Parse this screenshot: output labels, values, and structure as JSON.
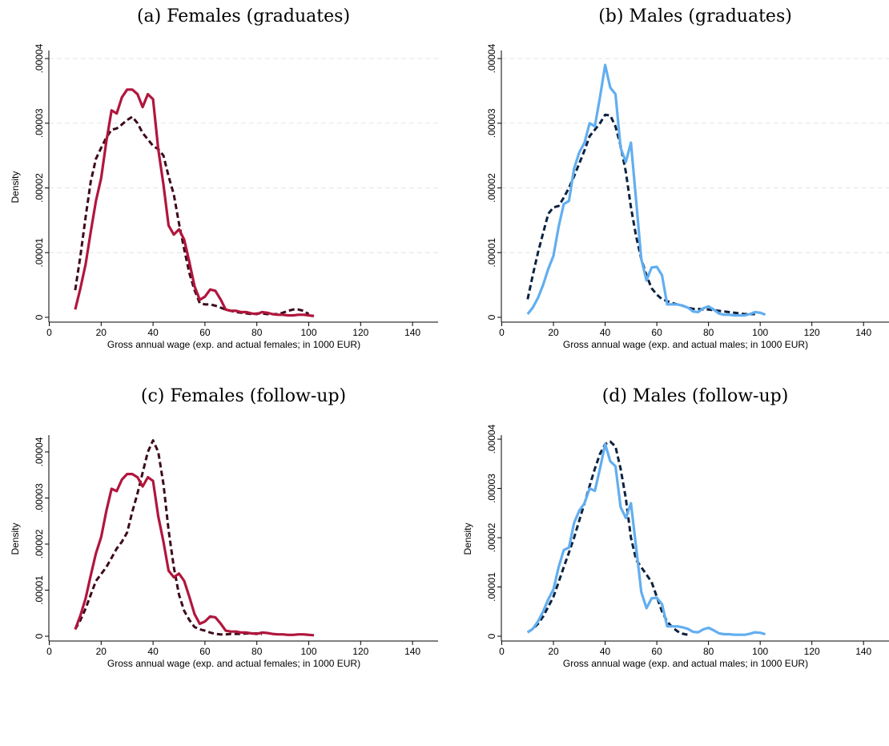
{
  "colors": {
    "female_actual": "#b0163d",
    "female_expected": "#3d0a1a",
    "male_actual": "#62aef0",
    "male_expected": "#0d2240",
    "grid": "#e4e4e4",
    "axis": "#000000"
  },
  "chart_data": [
    {
      "type": "line",
      "title": "(a) Females (graduates)",
      "xlabel": "Gross annual wage (exp. and actual females; in 1000 EUR)",
      "ylabel": "Density",
      "xlim": [
        0,
        150
      ],
      "ylim": [
        0,
        4.1e-05
      ],
      "xticks": [
        "0",
        "20",
        "40",
        "60",
        "80",
        "100",
        "120",
        "140"
      ],
      "yticks": [
        "0",
        ".00001",
        ".00002",
        ".00003",
        ".00004"
      ],
      "ytick_values": [
        0,
        1e-05,
        2e-05,
        3e-05,
        4e-05
      ],
      "grid": true,
      "series": [
        {
          "role": "actual",
          "style": "solid",
          "color": "#b0163d",
          "x": [
            10,
            12,
            14,
            16,
            18,
            20,
            22,
            24,
            26,
            28,
            30,
            32,
            34,
            36,
            38,
            40,
            42,
            44,
            46,
            48,
            50,
            52,
            54,
            56,
            58,
            60,
            62,
            64,
            66,
            68,
            70,
            72,
            74,
            76,
            78,
            80,
            82,
            84,
            86,
            88,
            90,
            92,
            94,
            96,
            98,
            100,
            102
          ],
          "y": [
            1.2e-06,
            4.5e-06,
            8.2e-06,
            1.32e-05,
            1.8e-05,
            2.15e-05,
            2.72e-05,
            3.2e-05,
            3.15e-05,
            3.4e-05,
            3.52e-05,
            3.52e-05,
            3.45e-05,
            3.25e-05,
            3.45e-05,
            3.37e-05,
            2.6e-05,
            2.05e-05,
            1.42e-05,
            1.28e-05,
            1.36e-05,
            1.2e-05,
            8.5e-06,
            4.8e-06,
            2.7e-06,
            3.2e-06,
            4.3e-06,
            4.1e-06,
            2.8e-06,
            1.2e-06,
            1e-06,
            1e-06,
            8e-07,
            8e-07,
            6e-07,
            5e-07,
            8e-07,
            7e-07,
            5e-07,
            4e-07,
            4e-07,
            3e-07,
            3e-07,
            4e-07,
            4e-07,
            3e-07,
            2e-07
          ]
        },
        {
          "role": "expected",
          "style": "dashed",
          "color": "#3d0a1a",
          "x": [
            10,
            12,
            14,
            16,
            18,
            20,
            22,
            24,
            26,
            28,
            30,
            32,
            34,
            36,
            38,
            40,
            42,
            44,
            46,
            48,
            50,
            52,
            54,
            56,
            58,
            60,
            62,
            64,
            66,
            68,
            70,
            72,
            74,
            76,
            78,
            80,
            82,
            84,
            86,
            88,
            90,
            92,
            94,
            96,
            98,
            100
          ],
          "y": [
            4.2e-06,
            9.5e-06,
            1.55e-05,
            2.1e-05,
            2.45e-05,
            2.62e-05,
            2.78e-05,
            2.9e-05,
            2.92e-05,
            2.98e-05,
            3.05e-05,
            3.1e-05,
            3e-05,
            2.85e-05,
            2.75e-05,
            2.65e-05,
            2.6e-05,
            2.5e-05,
            2.18e-05,
            1.9e-05,
            1.45e-05,
            1.05e-05,
            6.8e-06,
            4.2e-06,
            2.2e-06,
            2e-06,
            2e-06,
            1.8e-06,
            1.5e-06,
            1.2e-06,
            1e-06,
            8e-07,
            7e-07,
            6e-07,
            5e-07,
            6e-07,
            6e-07,
            5e-07,
            5e-07,
            5e-07,
            7e-07,
            1e-06,
            1.2e-06,
            1.2e-06,
            1e-06,
            5e-07
          ]
        }
      ]
    },
    {
      "type": "line",
      "title": "(b) Males (graduates)",
      "xlabel": "Gross annual wage (exp. and actual males; in 1000 EUR)",
      "ylabel": "",
      "xlim": [
        0,
        150
      ],
      "ylim": [
        0,
        4.1e-05
      ],
      "xticks": [
        "0",
        "20",
        "40",
        "60",
        "80",
        "100",
        "120",
        "140"
      ],
      "yticks": [
        "0",
        ".00001",
        ".00002",
        ".00003",
        ".00004"
      ],
      "ytick_values": [
        0,
        1e-05,
        2e-05,
        3e-05,
        4e-05
      ],
      "grid": true,
      "series": [
        {
          "role": "actual",
          "style": "solid",
          "color": "#62aef0",
          "x": [
            10,
            12,
            14,
            16,
            18,
            20,
            22,
            24,
            26,
            28,
            30,
            32,
            34,
            36,
            38,
            40,
            42,
            44,
            46,
            48,
            50,
            52,
            54,
            56,
            58,
            60,
            62,
            64,
            66,
            68,
            70,
            72,
            74,
            76,
            78,
            80,
            82,
            84,
            86,
            88,
            90,
            92,
            94,
            96,
            98,
            100,
            102
          ],
          "y": [
            5e-07,
            1.5e-06,
            3e-06,
            5e-06,
            7.5e-06,
            9.5e-06,
            1.4e-05,
            1.75e-05,
            1.8e-05,
            2.3e-05,
            2.55e-05,
            2.7e-05,
            3e-05,
            2.95e-05,
            3.4e-05,
            3.9e-05,
            3.55e-05,
            3.45e-05,
            2.62e-05,
            2.4e-05,
            2.7e-05,
            1.8e-05,
            9e-06,
            5.7e-06,
            7.7e-06,
            7.8e-06,
            6.5e-06,
            2e-06,
            2e-06,
            2e-06,
            1.8e-06,
            1.5e-06,
            9e-07,
            8e-07,
            1.4e-06,
            1.7e-06,
            1.2e-06,
            6e-07,
            4e-07,
            4e-07,
            3e-07,
            3e-07,
            3e-07,
            5e-07,
            8e-07,
            7e-07,
            4e-07
          ]
        },
        {
          "role": "expected",
          "style": "dashed",
          "color": "#0d2240",
          "x": [
            10,
            12,
            14,
            16,
            18,
            20,
            22,
            24,
            26,
            28,
            30,
            32,
            34,
            36,
            38,
            40,
            42,
            44,
            46,
            48,
            50,
            52,
            54,
            56,
            58,
            60,
            62,
            64,
            66,
            68,
            70,
            72,
            74,
            76,
            78,
            80,
            82,
            84,
            86,
            88,
            90,
            92,
            94,
            96,
            98
          ],
          "y": [
            2.8e-06,
            6.5e-06,
            1e-05,
            1.3e-05,
            1.6e-05,
            1.7e-05,
            1.72e-05,
            1.85e-05,
            2e-05,
            2.18e-05,
            2.38e-05,
            2.58e-05,
            2.8e-05,
            2.9e-05,
            3e-05,
            3.13e-05,
            3.12e-05,
            2.95e-05,
            2.65e-05,
            2.25e-05,
            1.7e-05,
            1.25e-05,
            9e-06,
            6.5e-06,
            4.5e-06,
            3.5e-06,
            2.8e-06,
            2.5e-06,
            2.2e-06,
            2e-06,
            1.8e-06,
            1.5e-06,
            1.3e-06,
            1.3e-06,
            1.2e-06,
            1.2e-06,
            1.1e-06,
            1e-06,
            9e-07,
            8e-07,
            7e-07,
            6e-07,
            5e-07,
            5e-07,
            5e-07
          ]
        }
      ]
    },
    {
      "type": "line",
      "title": "(c) Females (follow-up)",
      "xlabel": "Gross annual wage (exp. and actual females; in 1000 EUR)",
      "ylabel": "Density",
      "xlim": [
        0,
        150
      ],
      "ylim": [
        0,
        4.33e-05
      ],
      "xticks": [
        "0",
        "20",
        "40",
        "60",
        "80",
        "100",
        "120",
        "140"
      ],
      "yticks": [
        "0",
        ".00001",
        ".00002",
        ".00003",
        ".00004"
      ],
      "ytick_values": [
        0,
        1e-05,
        2e-05,
        3e-05,
        4e-05
      ],
      "grid": false,
      "series": [
        {
          "role": "actual",
          "style": "solid",
          "color": "#b0163d",
          "x": [
            10,
            12,
            14,
            16,
            18,
            20,
            22,
            24,
            26,
            28,
            30,
            32,
            34,
            36,
            38,
            40,
            42,
            44,
            46,
            48,
            50,
            52,
            54,
            56,
            58,
            60,
            62,
            64,
            66,
            68,
            70,
            72,
            74,
            76,
            78,
            80,
            82,
            84,
            86,
            88,
            90,
            92,
            94,
            96,
            98,
            100,
            102
          ],
          "y": [
            1.5e-06,
            4.5e-06,
            8.2e-06,
            1.32e-05,
            1.8e-05,
            2.15e-05,
            2.72e-05,
            3.2e-05,
            3.15e-05,
            3.4e-05,
            3.52e-05,
            3.52e-05,
            3.45e-05,
            3.25e-05,
            3.45e-05,
            3.37e-05,
            2.6e-05,
            2.05e-05,
            1.42e-05,
            1.28e-05,
            1.36e-05,
            1.2e-05,
            8.5e-06,
            4.8e-06,
            2.7e-06,
            3.2e-06,
            4.3e-06,
            4.1e-06,
            2.8e-06,
            1.2e-06,
            1e-06,
            1e-06,
            8e-07,
            8e-07,
            6e-07,
            5e-07,
            8e-07,
            7e-07,
            5e-07,
            4e-07,
            4e-07,
            3e-07,
            3e-07,
            4e-07,
            4e-07,
            3e-07,
            2e-07
          ]
        },
        {
          "role": "expected",
          "style": "dashed",
          "color": "#3d0a1a",
          "x": [
            10,
            12,
            14,
            16,
            18,
            20,
            22,
            24,
            26,
            28,
            30,
            32,
            34,
            36,
            38,
            40,
            42,
            44,
            46,
            48,
            50,
            52,
            54,
            56,
            58,
            60,
            62,
            64,
            66,
            68,
            70,
            72,
            74,
            76,
            78,
            80,
            82
          ],
          "y": [
            1.5e-06,
            3.5e-06,
            6e-06,
            9e-06,
            1.2e-05,
            1.35e-05,
            1.5e-05,
            1.7e-05,
            1.9e-05,
            2.05e-05,
            2.25e-05,
            2.7e-05,
            3.1e-05,
            3.55e-05,
            4e-05,
            4.25e-05,
            4e-05,
            3.3e-05,
            2.3e-05,
            1.5e-05,
            9e-06,
            5.5e-06,
            3.5e-06,
            2e-06,
            1.5e-06,
            1.2e-06,
            8e-07,
            5e-07,
            4e-07,
            4e-07,
            5e-07,
            5e-07,
            5e-07,
            6e-07,
            6e-07,
            6e-07,
            5e-07
          ]
        }
      ]
    },
    {
      "type": "line",
      "title": "(d) Males (follow-up)",
      "xlabel": "Gross annual wage (exp. and actual males; in 1000 EUR)",
      "ylabel": "Density",
      "xlim": [
        0,
        150
      ],
      "ylim": [
        0,
        4.05e-05
      ],
      "xticks": [
        "0",
        "20",
        "40",
        "60",
        "80",
        "100",
        "120",
        "140"
      ],
      "yticks": [
        "0",
        ".00001",
        ".00002",
        ".00003",
        ".00004"
      ],
      "ytick_values": [
        0,
        1e-05,
        2e-05,
        3e-05,
        4e-05
      ],
      "grid": false,
      "series": [
        {
          "role": "actual",
          "style": "solid",
          "color": "#62aef0",
          "x": [
            10,
            12,
            14,
            16,
            18,
            20,
            22,
            24,
            26,
            28,
            30,
            32,
            34,
            36,
            38,
            40,
            42,
            44,
            46,
            48,
            50,
            52,
            54,
            56,
            58,
            60,
            62,
            64,
            66,
            68,
            70,
            72,
            74,
            76,
            78,
            80,
            82,
            84,
            86,
            88,
            90,
            92,
            94,
            96,
            98,
            100,
            102
          ],
          "y": [
            8e-07,
            1.5e-06,
            3e-06,
            5e-06,
            7.5e-06,
            9.5e-06,
            1.4e-05,
            1.75e-05,
            1.8e-05,
            2.3e-05,
            2.55e-05,
            2.7e-05,
            3e-05,
            2.95e-05,
            3.4e-05,
            3.9e-05,
            3.55e-05,
            3.45e-05,
            2.62e-05,
            2.4e-05,
            2.7e-05,
            1.8e-05,
            9e-06,
            5.7e-06,
            7.7e-06,
            7.8e-06,
            6.5e-06,
            2e-06,
            2e-06,
            2e-06,
            1.8e-06,
            1.5e-06,
            9e-07,
            8e-07,
            1.4e-06,
            1.7e-06,
            1.2e-06,
            6e-07,
            4e-07,
            4e-07,
            3e-07,
            3e-07,
            3e-07,
            5e-07,
            8e-07,
            7e-07,
            4e-07
          ]
        },
        {
          "role": "expected",
          "style": "dashed",
          "color": "#0d2240",
          "x": [
            10,
            12,
            14,
            16,
            18,
            20,
            22,
            24,
            26,
            28,
            30,
            32,
            34,
            36,
            38,
            40,
            42,
            44,
            46,
            48,
            50,
            52,
            54,
            56,
            58,
            60,
            62,
            64,
            66,
            68,
            70,
            72
          ],
          "y": [
            8e-07,
            1.5e-06,
            2.5e-06,
            4e-06,
            6e-06,
            8e-06,
            1.1e-05,
            1.4e-05,
            1.7e-05,
            2e-05,
            2.35e-05,
            2.7e-05,
            3.05e-05,
            3.4e-05,
            3.7e-05,
            3.9e-05,
            3.95e-05,
            3.85e-05,
            3.4e-05,
            2.8e-05,
            2e-05,
            1.55e-05,
            1.4e-05,
            1.25e-05,
            1.1e-05,
            8e-06,
            5e-06,
            3e-06,
            1.8e-06,
            1e-06,
            5e-07,
            3e-07
          ]
        }
      ]
    }
  ]
}
